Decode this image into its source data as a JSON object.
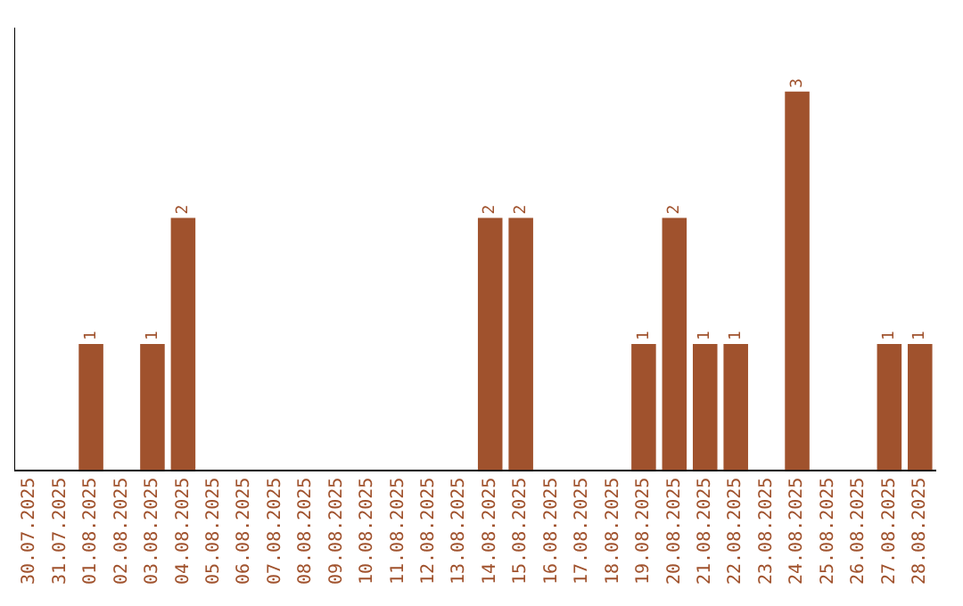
{
  "chart_data": {
    "type": "bar",
    "categories": [
      "30.07.2025",
      "31.07.2025",
      "01.08.2025",
      "02.08.2025",
      "03.08.2025",
      "04.08.2025",
      "05.08.2025",
      "06.08.2025",
      "07.08.2025",
      "08.08.2025",
      "09.08.2025",
      "10.08.2025",
      "11.08.2025",
      "12.08.2025",
      "13.08.2025",
      "14.08.2025",
      "15.08.2025",
      "16.08.2025",
      "17.08.2025",
      "18.08.2025",
      "19.08.2025",
      "20.08.2025",
      "21.08.2025",
      "22.08.2025",
      "23.08.2025",
      "24.08.2025",
      "25.08.2025",
      "26.08.2025",
      "27.08.2025",
      "28.08.2025"
    ],
    "values": [
      0,
      0,
      1,
      0,
      1,
      2,
      0,
      0,
      0,
      0,
      0,
      0,
      0,
      0,
      0,
      2,
      2,
      0,
      0,
      0,
      1,
      2,
      1,
      1,
      0,
      3,
      0,
      0,
      1,
      1
    ],
    "value_labels": [
      null,
      null,
      "1",
      null,
      "1",
      "2",
      null,
      null,
      null,
      null,
      null,
      null,
      null,
      null,
      null,
      "2",
      "2",
      null,
      null,
      null,
      "1",
      "2",
      "1",
      "1",
      null,
      "3",
      null,
      null,
      "1",
      "1"
    ],
    "color": "#a0522d",
    "grid": false,
    "legend": false,
    "tick_labels": "x"
  }
}
